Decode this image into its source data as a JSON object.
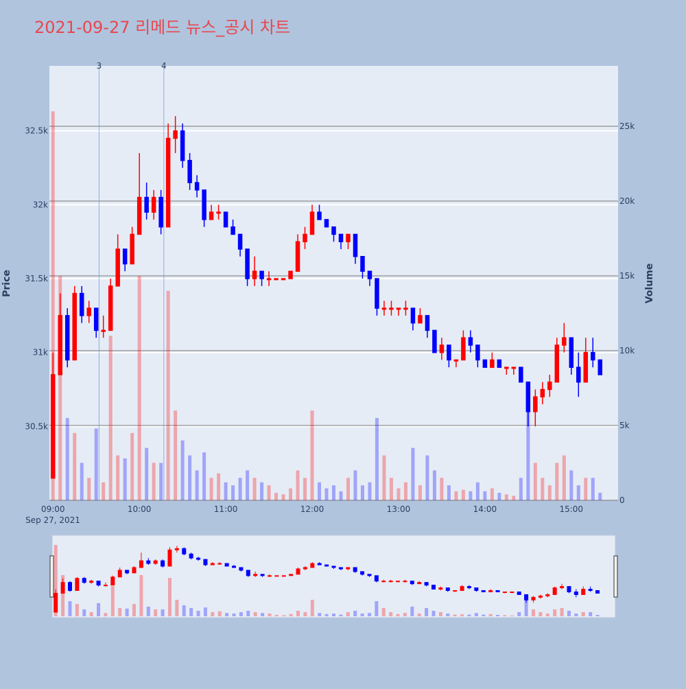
{
  "chart_data": {
    "type": "candlestick",
    "title": "2021-09-27 리메드 뉴스_공시 차트",
    "y_title": "Price",
    "y2_title": "Volume",
    "x_date_label": "Sep 27, 2021",
    "increasing_color": "#ff0000",
    "decreasing_color": "#0000ff",
    "xlim": [
      "2021-09-27 08:57:30",
      "2021-09-27 15:32:30"
    ],
    "xticks": [
      {
        "value": "2021-09-27 09:00",
        "label": "09:00"
      },
      {
        "value": "2021-09-27 10:00",
        "label": "10:00"
      },
      {
        "value": "2021-09-27 11:00",
        "label": "11:00"
      },
      {
        "value": "2021-09-27 12:00",
        "label": "12:00"
      },
      {
        "value": "2021-09-27 13:00",
        "label": "13:00"
      },
      {
        "value": "2021-09-27 14:00",
        "label": "14:00"
      },
      {
        "value": "2021-09-27 15:00",
        "label": "15:00"
      }
    ],
    "ylim": [
      30000,
      32940
    ],
    "yticks": [
      {
        "value": 30500,
        "label": "30.5k"
      },
      {
        "value": 31000,
        "label": "31k"
      },
      {
        "value": 31500,
        "label": "31.5k"
      },
      {
        "value": 32000,
        "label": "32k"
      },
      {
        "value": 32500,
        "label": "32.5k"
      }
    ],
    "y2lim": [
      0,
      29040
    ],
    "y2ticks": [
      0,
      {
        "value": 5000,
        "label": "5k"
      },
      {
        "value": 10000,
        "label": "10k"
      },
      {
        "value": 15000,
        "label": "15k"
      },
      {
        "value": 20000,
        "label": "20k"
      },
      {
        "value": 25000,
        "label": "25k"
      }
    ],
    "annotations": [
      {
        "x": "2021-09-27 09:32",
        "text": "3"
      },
      {
        "x": "2021-09-27 10:17",
        "text": "4"
      }
    ],
    "x": [
      "2021-09-27 09:00",
      "2021-09-27 09:05",
      "2021-09-27 09:10",
      "2021-09-27 09:15",
      "2021-09-27 09:20",
      "2021-09-27 09:25",
      "2021-09-27 09:30",
      "2021-09-27 09:35",
      "2021-09-27 09:40",
      "2021-09-27 09:45",
      "2021-09-27 09:50",
      "2021-09-27 09:55",
      "2021-09-27 10:00",
      "2021-09-27 10:05",
      "2021-09-27 10:10",
      "2021-09-27 10:15",
      "2021-09-27 10:20",
      "2021-09-27 10:25",
      "2021-09-27 10:30",
      "2021-09-27 10:35",
      "2021-09-27 10:40",
      "2021-09-27 10:45",
      "2021-09-27 10:50",
      "2021-09-27 10:55",
      "2021-09-27 11:00",
      "2021-09-27 11:05",
      "2021-09-27 11:10",
      "2021-09-27 11:15",
      "2021-09-27 11:20",
      "2021-09-27 11:25",
      "2021-09-27 11:30",
      "2021-09-27 11:35",
      "2021-09-27 11:40",
      "2021-09-27 11:45",
      "2021-09-27 11:50",
      "2021-09-27 11:55",
      "2021-09-27 12:00",
      "2021-09-27 12:05",
      "2021-09-27 12:10",
      "2021-09-27 12:15",
      "2021-09-27 12:20",
      "2021-09-27 12:25",
      "2021-09-27 12:30",
      "2021-09-27 12:35",
      "2021-09-27 12:40",
      "2021-09-27 12:45",
      "2021-09-27 12:50",
      "2021-09-27 12:55",
      "2021-09-27 13:00",
      "2021-09-27 13:05",
      "2021-09-27 13:10",
      "2021-09-27 13:15",
      "2021-09-27 13:20",
      "2021-09-27 13:25",
      "2021-09-27 13:30",
      "2021-09-27 13:35",
      "2021-09-27 13:40",
      "2021-09-27 13:45",
      "2021-09-27 13:50",
      "2021-09-27 13:55",
      "2021-09-27 14:00",
      "2021-09-27 14:05",
      "2021-09-27 14:10",
      "2021-09-27 14:15",
      "2021-09-27 14:20",
      "2021-09-27 14:25",
      "2021-09-27 14:30",
      "2021-09-27 14:35",
      "2021-09-27 14:40",
      "2021-09-27 14:45",
      "2021-09-27 14:50",
      "2021-09-27 14:55",
      "2021-09-27 15:00",
      "2021-09-27 15:05",
      "2021-09-27 15:10",
      "2021-09-27 15:15",
      "2021-09-27 15:20"
    ],
    "open": [
      30150,
      30850,
      31250,
      30950,
      31400,
      31250,
      31300,
      31150,
      31150,
      31450,
      31700,
      31600,
      31800,
      32050,
      31950,
      32050,
      31850,
      32450,
      32500,
      32300,
      32150,
      32100,
      31900,
      31950,
      31950,
      31850,
      31800,
      31700,
      31500,
      31550,
      31500,
      31500,
      31500,
      31500,
      31550,
      31750,
      31800,
      31950,
      31900,
      31850,
      31800,
      31750,
      31800,
      31650,
      31550,
      31500,
      31300,
      31300,
      31300,
      31300,
      31300,
      31200,
      31250,
      31150,
      31000,
      31050,
      30950,
      30950,
      31100,
      31050,
      30950,
      30900,
      30950,
      30900,
      30900,
      30900,
      30800,
      30600,
      30700,
      30750,
      30800,
      31050,
      31100,
      30900,
      30800,
      31000,
      30950
    ],
    "high": [
      31000,
      31400,
      31300,
      31450,
      31450,
      31350,
      31300,
      31250,
      31500,
      31800,
      31700,
      31850,
      32350,
      32150,
      32100,
      32100,
      32550,
      32600,
      32550,
      32350,
      32200,
      32100,
      32000,
      32000,
      31950,
      31900,
      31800,
      31700,
      31650,
      31550,
      31550,
      31500,
      31500,
      31550,
      31800,
      31850,
      32000,
      32000,
      31900,
      31850,
      31800,
      31800,
      31800,
      31650,
      31550,
      31500,
      31350,
      31350,
      31300,
      31350,
      31300,
      31300,
      31250,
      31150,
      31100,
      31050,
      30950,
      31150,
      31150,
      31050,
      30950,
      31000,
      30950,
      30900,
      30900,
      30900,
      30800,
      30750,
      30800,
      30850,
      31100,
      31200,
      31100,
      31000,
      31100,
      31100,
      30950
    ],
    "low": [
      30150,
      30850,
      30900,
      30950,
      31200,
      31200,
      31100,
      31100,
      31150,
      31450,
      31550,
      31600,
      31800,
      31900,
      31900,
      31800,
      31850,
      32350,
      32250,
      32100,
      32050,
      31850,
      31900,
      31900,
      31850,
      31800,
      31650,
      31450,
      31450,
      31450,
      31450,
      31500,
      31500,
      31500,
      31550,
      31700,
      31800,
      31900,
      31850,
      31750,
      31700,
      31700,
      31600,
      31500,
      31450,
      31250,
      31250,
      31250,
      31250,
      31250,
      31150,
      31200,
      31100,
      31000,
      30950,
      30900,
      30900,
      30950,
      31000,
      30900,
      30900,
      30900,
      30900,
      30850,
      30850,
      30800,
      30500,
      30500,
      30650,
      30700,
      30800,
      31000,
      30850,
      30700,
      30800,
      30900,
      30850
    ],
    "close": [
      30850,
      31250,
      30950,
      31400,
      31250,
      31300,
      31150,
      31150,
      31450,
      31700,
      31600,
      31800,
      32050,
      31950,
      32050,
      31850,
      32450,
      32500,
      32300,
      32150,
      32100,
      31900,
      31950,
      31950,
      31850,
      31800,
      31700,
      31500,
      31550,
      31500,
      31500,
      31500,
      31500,
      31550,
      31750,
      31800,
      31950,
      31900,
      31850,
      31800,
      31750,
      31800,
      31650,
      31550,
      31500,
      31300,
      31300,
      31300,
      31300,
      31300,
      31200,
      31250,
      31150,
      31000,
      31050,
      30950,
      30950,
      31100,
      31050,
      30950,
      30900,
      30950,
      30900,
      30900,
      30900,
      30800,
      30600,
      30700,
      30750,
      30800,
      31050,
      31100,
      30900,
      30800,
      31000,
      30950,
      30850
    ],
    "volume": [
      26000,
      15000,
      5500,
      4500,
      2500,
      1500,
      4800,
      1200,
      11000,
      3000,
      2800,
      4500,
      15000,
      3500,
      2500,
      2500,
      14000,
      6000,
      4000,
      3000,
      2000,
      3200,
      1500,
      1800,
      1200,
      1000,
      1500,
      2000,
      1500,
      1200,
      1000,
      500,
      400,
      800,
      2000,
      1500,
      6000,
      1200,
      800,
      1000,
      600,
      1500,
      2000,
      1000,
      1200,
      5500,
      3000,
      1500,
      800,
      1200,
      3500,
      1000,
      3000,
      2000,
      1500,
      1000,
      600,
      700,
      600,
      1200,
      600,
      800,
      500,
      400,
      300,
      1500,
      6000,
      2500,
      1500,
      1000,
      2500,
      3000,
      2000,
      1000,
      1500,
      1500,
      500
    ]
  }
}
